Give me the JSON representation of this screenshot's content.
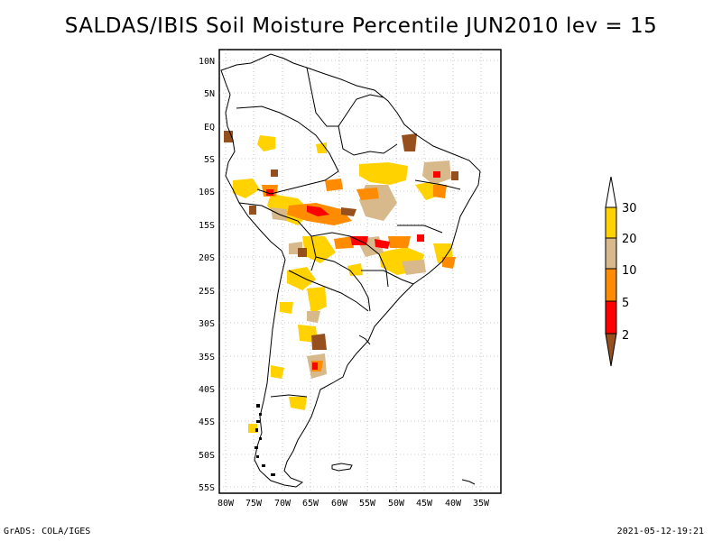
{
  "title": "SALDAS/IBIS Soil Moisture Percentile JUN2010 lev = 15",
  "footer": {
    "left": "GrADS: COLA/IGES",
    "right": "2021-05-12-19:21"
  },
  "lat_labels": [
    "10N",
    "5N",
    "EQ",
    "5S",
    "10S",
    "15S",
    "20S",
    "25S",
    "30S",
    "35S",
    "40S",
    "45S",
    "50S",
    "55S"
  ],
  "lon_labels": [
    "80W",
    "75W",
    "70W",
    "65W",
    "60W",
    "55W",
    "50W",
    "45W",
    "40W",
    "35W"
  ],
  "legend": {
    "labels": [
      "30",
      "20",
      "10",
      "5",
      "2"
    ],
    "colors": {
      "above_30": "#ffffff",
      "20_30": "#ffd200",
      "10_20": "#d7b98c",
      "5_10": "#ff8c00",
      "2_5": "#ff0000",
      "below_2": "#96501e"
    }
  }
}
